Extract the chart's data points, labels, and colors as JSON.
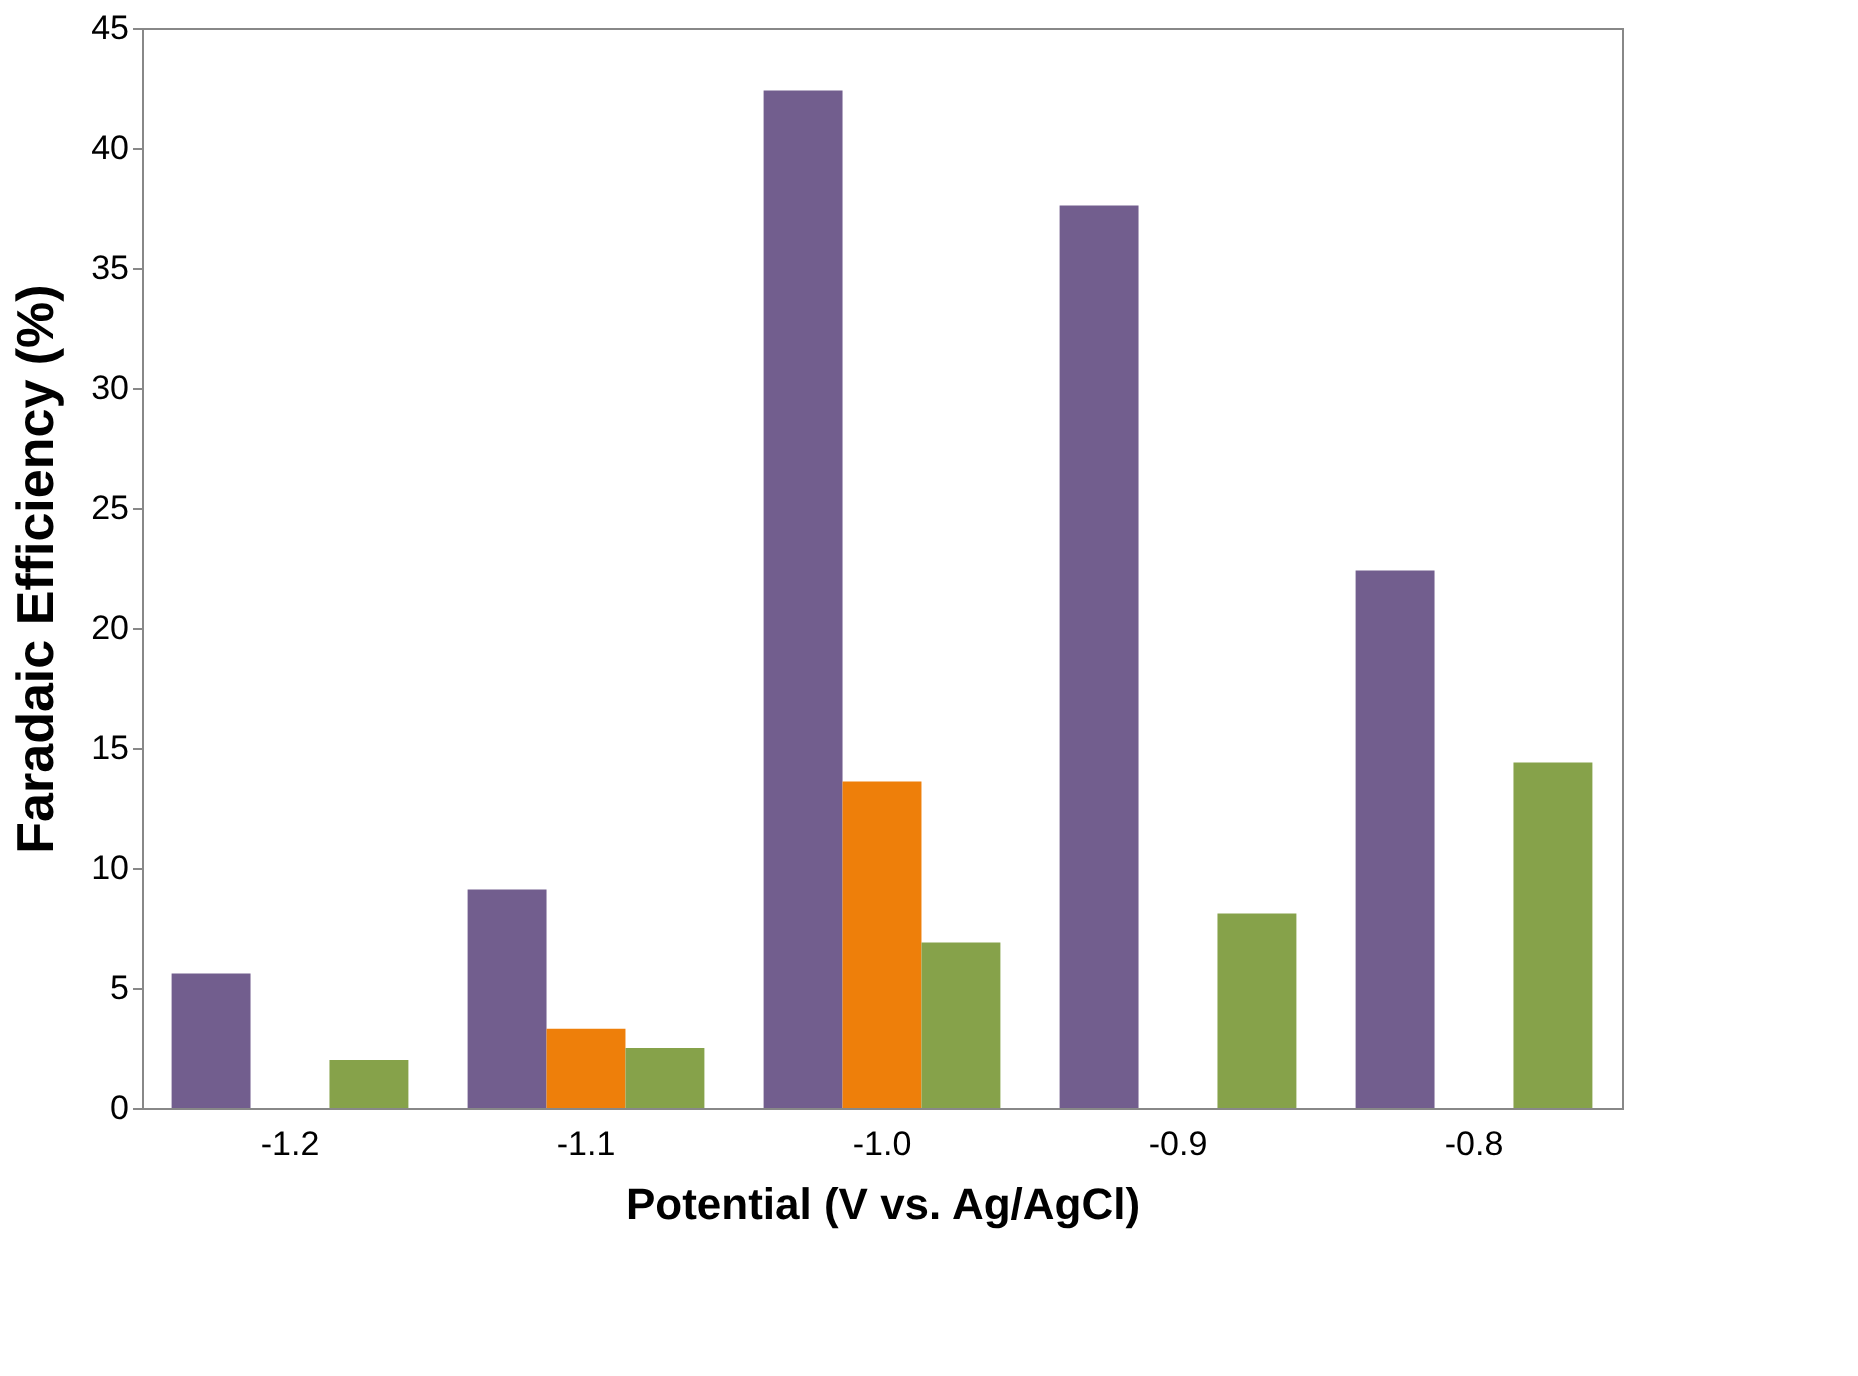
{
  "chart_data": {
    "type": "bar",
    "xlabel": "Potential (V vs. Ag/AgCl)",
    "ylabel": "Faradaic Efficiency (%)",
    "categories": [
      "-1.2",
      "-1.1",
      "-1.0",
      "-0.9",
      "-0.8"
    ],
    "series": [
      {
        "color": "#725e8e",
        "values": [
          5.6,
          9.1,
          42.4,
          37.6,
          22.4
        ]
      },
      {
        "color": "#ee7f0a",
        "values": [
          null,
          3.3,
          13.6,
          null,
          null
        ]
      },
      {
        "color": "#86a24a",
        "values": [
          2.0,
          2.5,
          6.9,
          8.1,
          14.4
        ]
      }
    ],
    "ylim": [
      0,
      45
    ],
    "yticks": [
      0,
      5,
      10,
      15,
      20,
      25,
      30,
      35,
      40,
      45
    ],
    "grid": false,
    "legend": false
  }
}
